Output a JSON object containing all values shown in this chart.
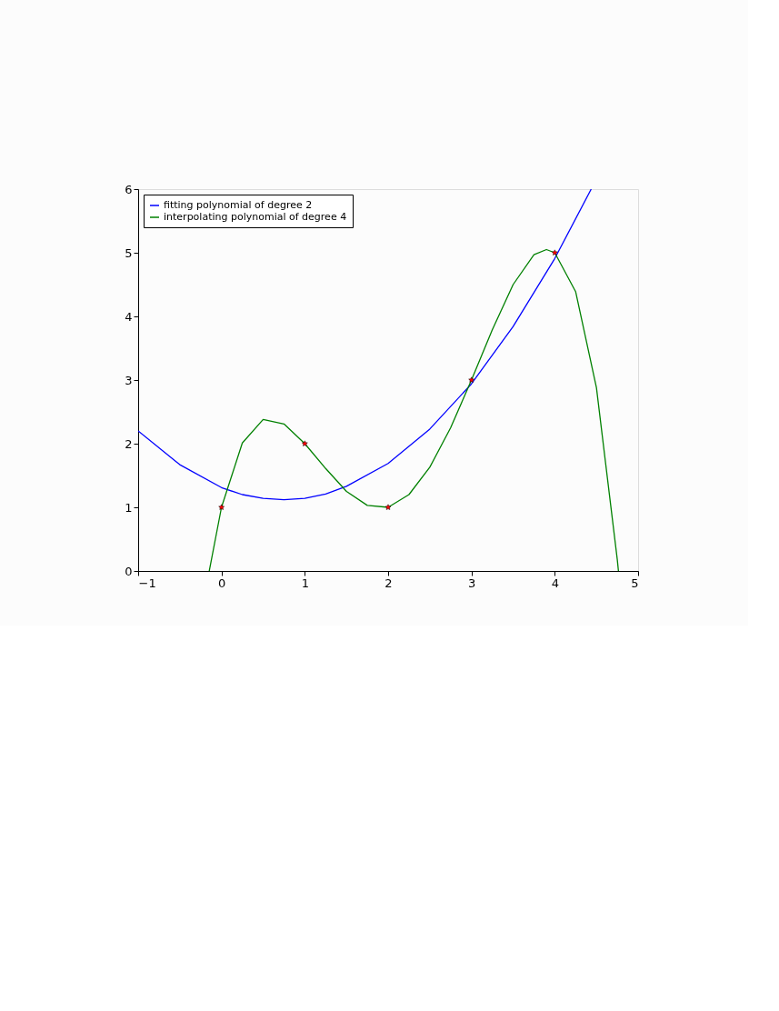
{
  "chart_data": {
    "type": "line",
    "xlim": [
      -1,
      5
    ],
    "ylim": [
      0,
      6
    ],
    "xticks": [
      -1,
      0,
      1,
      2,
      3,
      4,
      5
    ],
    "yticks": [
      0,
      1,
      2,
      3,
      4,
      5,
      6
    ],
    "grid": false,
    "legend": "top left",
    "series": [
      {
        "name": "fitting polynomial of degree 2",
        "color": "#0000ff",
        "x": [
          -1,
          -0.5,
          0,
          0.25,
          0.5,
          0.75,
          1,
          1.25,
          1.5,
          2,
          2.5,
          3,
          3.5,
          4,
          4.437
        ],
        "values": [
          2.2,
          1.67,
          1.31,
          1.2,
          1.14,
          1.12,
          1.14,
          1.21,
          1.33,
          1.69,
          2.23,
          2.94,
          3.84,
          4.91,
          6.0
        ]
      },
      {
        "name": "interpolating polynomial of degree 4",
        "color": "#008000",
        "x": [
          -0.147,
          0,
          0.25,
          0.5,
          0.75,
          1,
          1.25,
          1.5,
          1.75,
          2,
          2.25,
          2.5,
          2.75,
          3,
          3.25,
          3.5,
          3.75,
          3.9,
          4,
          4.25,
          4.5,
          4.75,
          4.764
        ],
        "values": [
          0,
          1,
          2.01,
          2.38,
          2.31,
          2,
          1.61,
          1.25,
          1.03,
          1,
          1.2,
          1.63,
          2.25,
          3,
          3.79,
          4.5,
          4.97,
          5.05,
          5,
          4.39,
          2.88,
          0.18,
          0
        ]
      },
      {
        "color": "#ff0000",
        "type": "scatter",
        "marker": "star",
        "x": [
          0,
          1,
          2,
          3,
          4
        ],
        "values": [
          1,
          2,
          1,
          3,
          5
        ]
      }
    ]
  }
}
